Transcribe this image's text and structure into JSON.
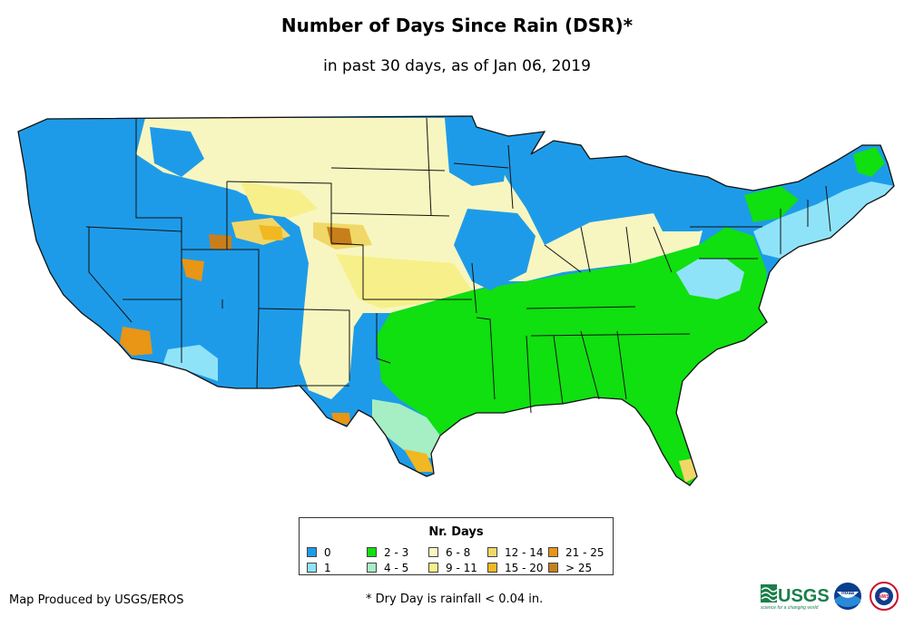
{
  "title": "Number of Days Since Rain (DSR)*",
  "subtitle": "in past 30 days, as of Jan 06, 2019",
  "legend": {
    "title": "Nr. Days",
    "items": [
      {
        "label": "0",
        "color": "#1e9be8"
      },
      {
        "label": "1",
        "color": "#8fe3f8"
      },
      {
        "label": "2 - 3",
        "color": "#10df10"
      },
      {
        "label": "4 - 5",
        "color": "#a6efc4"
      },
      {
        "label": "6 - 8",
        "color": "#f8f6c0"
      },
      {
        "label": "9 - 11",
        "color": "#f7f08a"
      },
      {
        "label": "12 - 14",
        "color": "#f1d768"
      },
      {
        "label": "15 - 20",
        "color": "#f1b821"
      },
      {
        "label": "21 - 25",
        "color": "#e99515"
      },
      {
        "label": "> 25",
        "color": "#c87f1b"
      }
    ]
  },
  "producer": "Map Produced by USGS/EROS",
  "footnote": "* Dry Day is rainfall < 0.04 in.",
  "logos": {
    "usgs": "USGS",
    "usgs_tagline": "science for a changing world",
    "noaa": "noaa",
    "nws": "NWS"
  }
}
